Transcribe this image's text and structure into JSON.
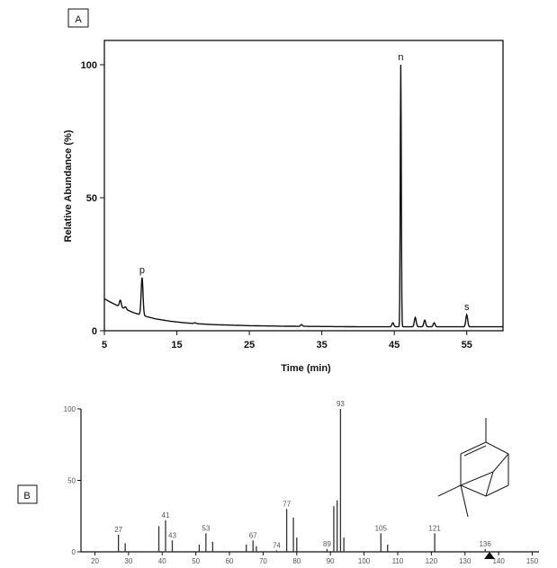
{
  "chart_data": [
    {
      "panel": "A",
      "type": "line",
      "xlabel": "Time (min)",
      "ylabel": "Relative Abundance (%)",
      "xlim": [
        5,
        60
      ],
      "ylim": [
        0,
        110
      ],
      "xticks": [
        5,
        15,
        25,
        35,
        45,
        55
      ],
      "yticks": [
        0,
        50,
        100
      ],
      "baseline": [
        [
          5,
          12
        ],
        [
          6,
          10.5
        ],
        [
          7,
          9.2
        ],
        [
          7.5,
          8.6
        ],
        [
          8,
          8
        ],
        [
          9,
          6.8
        ],
        [
          10,
          6
        ],
        [
          11,
          5.2
        ],
        [
          12,
          4.5
        ],
        [
          14,
          3.6
        ],
        [
          16,
          3
        ],
        [
          18,
          2.6
        ],
        [
          20,
          2.3
        ],
        [
          25,
          1.9
        ],
        [
          30,
          1.7
        ],
        [
          35,
          1.6
        ],
        [
          40,
          1.5
        ],
        [
          45,
          1.5
        ],
        [
          50,
          1.5
        ],
        [
          55,
          1.5
        ],
        [
          60,
          1.5
        ]
      ],
      "peaks": [
        {
          "x": 7.2,
          "y": 11.5
        },
        {
          "x": 7.9,
          "y": 9
        },
        {
          "x": 10.2,
          "y": 20,
          "label": "p"
        },
        {
          "x": 17.5,
          "y": 3
        },
        {
          "x": 32.2,
          "y": 2.3
        },
        {
          "x": 44.8,
          "y": 3
        },
        {
          "x": 45.9,
          "y": 100,
          "label": "n"
        },
        {
          "x": 47.9,
          "y": 5
        },
        {
          "x": 49.2,
          "y": 4
        },
        {
          "x": 50.5,
          "y": 3
        },
        {
          "x": 55,
          "y": 6,
          "label": "s"
        }
      ]
    },
    {
      "panel": "B",
      "type": "bar",
      "xlim": [
        18,
        152
      ],
      "ylim": [
        0,
        100
      ],
      "xticks": [
        20,
        30,
        40,
        50,
        60,
        70,
        80,
        90,
        100,
        110,
        120,
        130,
        140,
        150
      ],
      "yticks": [
        0,
        50,
        100
      ],
      "bars": [
        {
          "mz": 27,
          "v": 12,
          "label": "27"
        },
        {
          "mz": 29,
          "v": 6
        },
        {
          "mz": 39,
          "v": 18
        },
        {
          "mz": 41,
          "v": 22,
          "label": "41"
        },
        {
          "mz": 43,
          "v": 8,
          "label": "43"
        },
        {
          "mz": 51,
          "v": 5
        },
        {
          "mz": 53,
          "v": 13,
          "label": "53"
        },
        {
          "mz": 55,
          "v": 7
        },
        {
          "mz": 65,
          "v": 5
        },
        {
          "mz": 67,
          "v": 8,
          "label": "67"
        },
        {
          "mz": 68,
          "v": 4
        },
        {
          "mz": 74,
          "v": 1,
          "label": "74"
        },
        {
          "mz": 77,
          "v": 30,
          "label": "77"
        },
        {
          "mz": 79,
          "v": 24
        },
        {
          "mz": 80,
          "v": 10
        },
        {
          "mz": 89,
          "v": 2,
          "label": "89"
        },
        {
          "mz": 91,
          "v": 32
        },
        {
          "mz": 92,
          "v": 36
        },
        {
          "mz": 93,
          "v": 100,
          "label": "93"
        },
        {
          "mz": 94,
          "v": 10
        },
        {
          "mz": 105,
          "v": 13,
          "label": "105"
        },
        {
          "mz": 107,
          "v": 5
        },
        {
          "mz": 121,
          "v": 13,
          "label": "121"
        },
        {
          "mz": 136,
          "v": 2,
          "label": "136"
        }
      ]
    }
  ],
  "panels": {
    "a_label": "A",
    "b_label": "B"
  }
}
